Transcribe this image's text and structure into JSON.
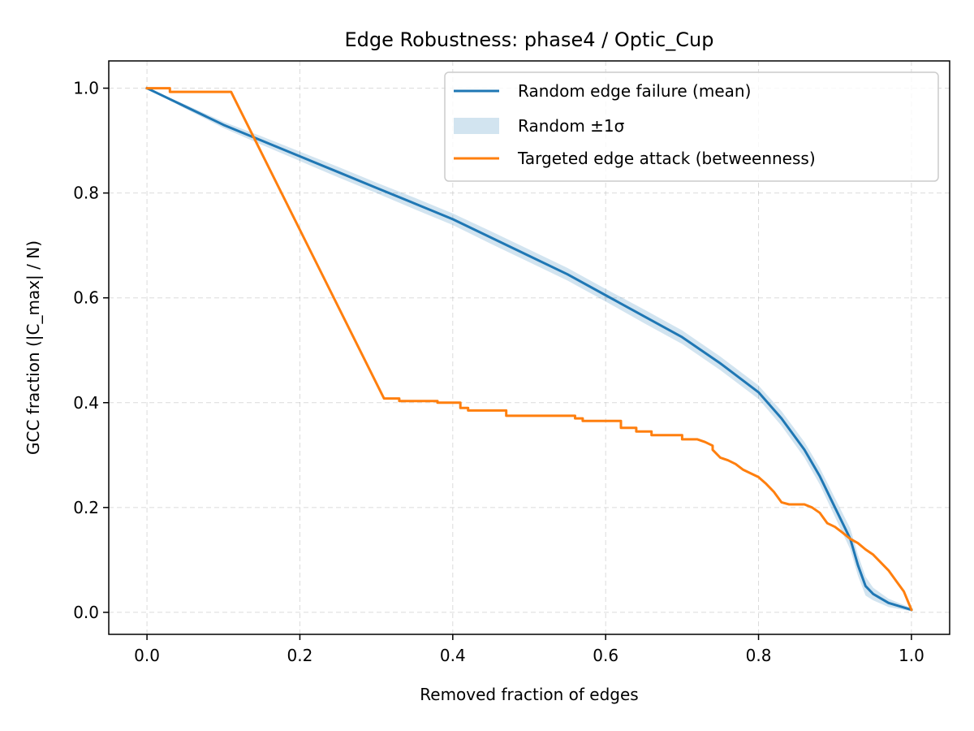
{
  "chart_data": {
    "type": "line",
    "title": "Edge Robustness: phase4 / Optic_Cup",
    "xlabel": "Removed fraction of edges",
    "ylabel": "GCC fraction (|C_max| / N)",
    "xlim": [
      -0.05,
      1.05
    ],
    "ylim": [
      -0.042,
      1.052
    ],
    "xticks": [
      "0.0",
      "0.2",
      "0.4",
      "0.6",
      "0.8",
      "1.0"
    ],
    "yticks": [
      "0.0",
      "0.2",
      "0.4",
      "0.6",
      "0.8",
      "1.0"
    ],
    "grid": true,
    "legend_position": "top-right",
    "series": [
      {
        "name": "Random edge failure (mean)",
        "color": "#1f77b4",
        "x": [
          0.0,
          0.05,
          0.1,
          0.15,
          0.2,
          0.25,
          0.3,
          0.35,
          0.4,
          0.45,
          0.5,
          0.55,
          0.6,
          0.65,
          0.7,
          0.75,
          0.8,
          0.83,
          0.86,
          0.88,
          0.9,
          0.92,
          0.93,
          0.94,
          0.95,
          0.97,
          1.0
        ],
        "y": [
          1.0,
          0.965,
          0.93,
          0.9,
          0.87,
          0.84,
          0.81,
          0.78,
          0.75,
          0.715,
          0.68,
          0.645,
          0.605,
          0.565,
          0.525,
          0.475,
          0.42,
          0.37,
          0.31,
          0.26,
          0.2,
          0.14,
          0.09,
          0.05,
          0.035,
          0.018,
          0.005
        ]
      },
      {
        "name": "Random ±1σ",
        "color": "#1f77b4",
        "band_sigma": [
          0.0,
          0.004,
          0.006,
          0.008,
          0.009,
          0.01,
          0.01,
          0.011,
          0.011,
          0.012,
          0.012,
          0.012,
          0.012,
          0.013,
          0.013,
          0.013,
          0.013,
          0.014,
          0.015,
          0.016,
          0.018,
          0.02,
          0.02,
          0.018,
          0.012,
          0.008,
          0.003
        ]
      },
      {
        "name": "Targeted edge attack (betweenness)",
        "color": "#ff7f0e",
        "x": [
          0.0,
          0.03,
          0.03,
          0.11,
          0.31,
          0.33,
          0.33,
          0.35,
          0.38,
          0.38,
          0.41,
          0.41,
          0.42,
          0.42,
          0.47,
          0.47,
          0.56,
          0.56,
          0.57,
          0.57,
          0.62,
          0.62,
          0.64,
          0.64,
          0.66,
          0.66,
          0.7,
          0.7,
          0.72,
          0.73,
          0.74,
          0.74,
          0.75,
          0.76,
          0.77,
          0.78,
          0.79,
          0.8,
          0.81,
          0.82,
          0.83,
          0.84,
          0.85,
          0.86,
          0.87,
          0.88,
          0.89,
          0.9,
          0.91,
          0.92,
          0.93,
          0.94,
          0.95,
          0.96,
          0.97,
          0.98,
          0.99,
          1.0
        ],
        "y": [
          1.0,
          1.0,
          0.993,
          0.993,
          0.408,
          0.408,
          0.403,
          0.403,
          0.403,
          0.4,
          0.4,
          0.39,
          0.39,
          0.385,
          0.385,
          0.375,
          0.375,
          0.37,
          0.37,
          0.365,
          0.365,
          0.352,
          0.352,
          0.345,
          0.345,
          0.338,
          0.338,
          0.33,
          0.33,
          0.325,
          0.318,
          0.31,
          0.295,
          0.29,
          0.283,
          0.272,
          0.265,
          0.258,
          0.245,
          0.23,
          0.21,
          0.206,
          0.206,
          0.206,
          0.2,
          0.19,
          0.17,
          0.163,
          0.152,
          0.14,
          0.132,
          0.12,
          0.11,
          0.095,
          0.08,
          0.06,
          0.04,
          0.005
        ]
      }
    ]
  }
}
